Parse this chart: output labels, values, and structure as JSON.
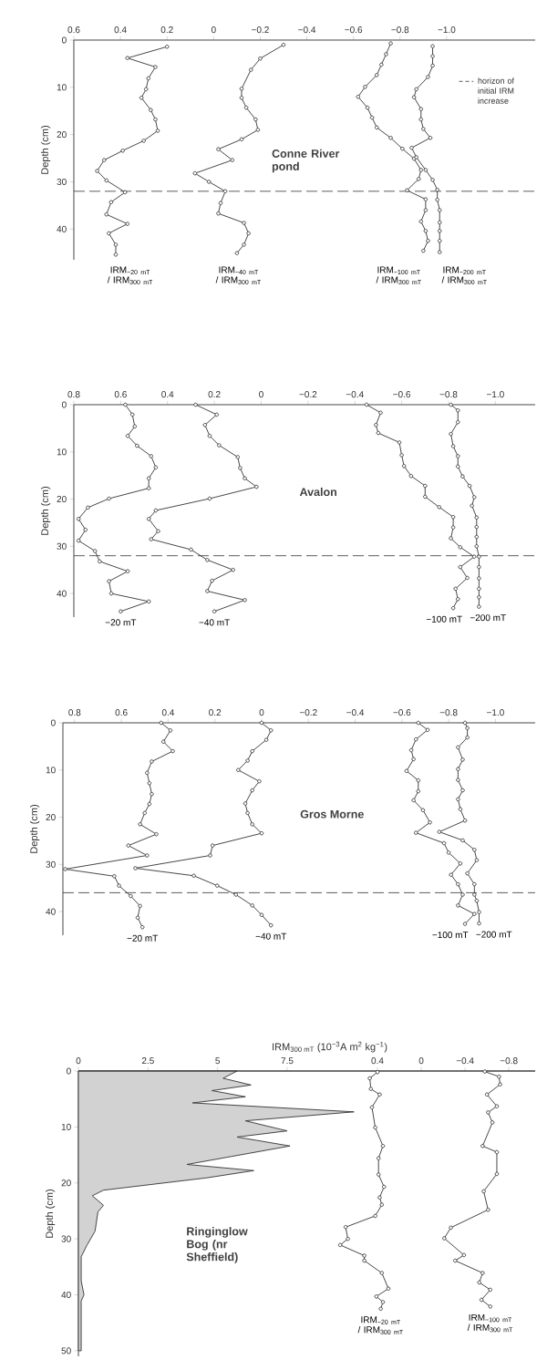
{
  "chart_data": [
    {
      "type": "line",
      "title": "Conne River pond",
      "ylabel": "Depth (cm)",
      "xlim": [
        0.6,
        -1.38
      ],
      "ylim": [
        46.5,
        0
      ],
      "xticks": [
        0.6,
        0.4,
        0.2,
        0,
        {
          "value": -0.2,
          "label": "−0.2"
        },
        {
          "value": -0.4,
          "label": "−0.4"
        },
        {
          "value": -0.6,
          "label": "−0.6"
        },
        {
          "value": -0.8,
          "label": "−0.8"
        },
        {
          "value": -1.0,
          "label": "−1.0"
        }
      ],
      "yticks": [
        0,
        10,
        20,
        30,
        40
      ],
      "ref_lines": [
        {
          "axis": "y",
          "value": 32,
          "label": "horizon of initial IRM increase",
          "line_style": "dashed"
        }
      ],
      "series": [
        {
          "name": "IRM$_{−20 mT}$ / IRM$_{300 mT}$",
          "color": "#333333",
          "marker": "circle",
          "x": [
            0.2,
            0.37,
            0.25,
            0.28,
            0.29,
            0.31,
            0.27,
            0.25,
            0.24,
            0.3,
            0.39,
            0.47,
            0.5,
            0.46,
            0.38,
            0.44,
            0.46,
            0.37,
            0.45,
            0.42,
            0.42
          ],
          "values": [
            1.4,
            3.8,
            5.7,
            8.1,
            10.4,
            12.2,
            14.8,
            16.8,
            19.2,
            21.3,
            23.4,
            25.4,
            27.7,
            29.7,
            32.2,
            34.3,
            36.9,
            38.9,
            40.9,
            43.3,
            45.4
          ]
        },
        {
          "name": "IRM$_{−40 mT}$ / IRM$_{300 mT}$",
          "color": "#333333",
          "marker": "circle",
          "x": [
            -0.3,
            -0.2,
            -0.16,
            -0.12,
            -0.12,
            -0.14,
            -0.18,
            -0.19,
            -0.12,
            -0.02,
            -0.08,
            0.08,
            0.02,
            -0.05,
            -0.03,
            -0.02,
            -0.13,
            -0.15,
            -0.13,
            -0.1
          ],
          "values": [
            1.0,
            3.9,
            6.3,
            10.3,
            12.2,
            14.3,
            16.8,
            19.0,
            21.0,
            23.1,
            25.4,
            28.2,
            30.0,
            32.0,
            34.5,
            36.7,
            38.7,
            40.9,
            43.3,
            45.1
          ]
        },
        {
          "name": "IRM$_{−100 mT}$ / IRM$_{300 mT}$",
          "color": "#333333",
          "marker": "circle",
          "x": [
            -0.76,
            -0.74,
            -0.72,
            -0.7,
            -0.65,
            -0.62,
            -0.66,
            -0.68,
            -0.7,
            -0.76,
            -0.81,
            -0.86,
            -0.89,
            -0.88,
            -0.83,
            -0.91,
            -0.91,
            -0.89,
            -0.91,
            -0.92,
            -0.9
          ],
          "values": [
            0.7,
            3.0,
            5.2,
            7.4,
            9.9,
            12.0,
            14.3,
            16.4,
            18.5,
            20.7,
            23.0,
            25.1,
            27.5,
            29.4,
            31.8,
            33.7,
            36.0,
            38.4,
            40.4,
            42.5,
            44.6
          ]
        },
        {
          "name": "IRM$_{−200 mT}$ / IRM$_{300 mT}$",
          "color": "#333333",
          "marker": "circle",
          "x": [
            -0.94,
            -0.94,
            -0.94,
            -0.92,
            -0.87,
            -0.86,
            -0.89,
            -0.89,
            -0.9,
            -0.93,
            -0.85,
            -0.87,
            -0.91,
            -0.94,
            -0.96,
            -0.96,
            -0.97,
            -0.97,
            -0.97,
            -0.97,
            -0.97
          ],
          "values": [
            1.3,
            3.4,
            5.4,
            7.8,
            10.4,
            12.1,
            14.6,
            16.8,
            18.8,
            20.7,
            22.8,
            24.8,
            27.5,
            29.6,
            31.7,
            33.8,
            36.0,
            38.6,
            40.4,
            42.5,
            44.9
          ]
        }
      ]
    },
    {
      "type": "line",
      "title": "Avalon",
      "ylabel": "Depth (cm)",
      "xlim": [
        0.8,
        -1.17
      ],
      "ylim": [
        45,
        0
      ],
      "xticks": [
        0.8,
        0.6,
        0.4,
        0.2,
        0,
        {
          "value": -0.2,
          "label": "−0.2"
        },
        {
          "value": -0.4,
          "label": "−0.4"
        },
        {
          "value": -0.6,
          "label": "−0.6"
        },
        {
          "value": -0.8,
          "label": "−0.8"
        },
        {
          "value": -1.0,
          "label": "−1.0"
        }
      ],
      "yticks": [
        0,
        10,
        20,
        30,
        40
      ],
      "ref_lines": [
        {
          "axis": "y",
          "value": 32,
          "line_style": "dashed"
        }
      ],
      "series": [
        {
          "name": "−20 mT",
          "color": "#333333",
          "marker": "circle",
          "x": [
            0.58,
            0.55,
            0.54,
            0.57,
            0.53,
            0.47,
            0.45,
            0.48,
            0.48,
            0.65,
            0.74,
            0.78,
            0.75,
            0.78,
            0.71,
            0.69,
            0.57,
            0.65,
            0.64,
            0.48,
            0.6
          ],
          "values": [
            0,
            2.1,
            4.6,
            6.6,
            8.7,
            10.9,
            13.3,
            15.6,
            17.7,
            19.9,
            21.8,
            24.2,
            26.5,
            28.8,
            31.0,
            33.2,
            35.3,
            37.4,
            40.0,
            41.7,
            43.8
          ]
        },
        {
          "name": "−40 mT",
          "color": "#333333",
          "marker": "circle",
          "x": [
            0.28,
            0.19,
            0.24,
            0.22,
            0.18,
            0.1,
            0.09,
            0.07,
            0.02,
            0.22,
            0.45,
            0.48,
            0.44,
            0.47,
            0.3,
            0.23,
            0.12,
            0.21,
            0.23,
            0.07,
            0.2
          ],
          "values": [
            0,
            2.1,
            4.3,
            6.6,
            8.6,
            11.1,
            13.4,
            15.6,
            17.4,
            19.9,
            22.4,
            24.2,
            26.8,
            28.5,
            30.7,
            32.9,
            35.0,
            37.3,
            39.5,
            41.4,
            43.8
          ]
        },
        {
          "name": "−100 mT",
          "color": "#333333",
          "marker": "circle",
          "x": [
            -0.45,
            -0.51,
            -0.49,
            -0.5,
            -0.59,
            -0.6,
            -0.61,
            -0.64,
            -0.7,
            -0.7,
            -0.76,
            -0.82,
            -0.82,
            -0.81,
            -0.85,
            -0.91,
            -0.85,
            -0.88,
            -0.83,
            -0.84,
            -0.82
          ],
          "values": [
            0,
            1.7,
            4.3,
            6.0,
            8.0,
            10.7,
            13.0,
            15.1,
            17.2,
            19.5,
            21.7,
            23.8,
            26.0,
            28.3,
            30.2,
            32.2,
            34.4,
            36.7,
            39.0,
            41.2,
            43.1
          ]
        },
        {
          "name": "−200 mT",
          "color": "#333333",
          "marker": "circle",
          "x": [
            -0.81,
            -0.84,
            -0.84,
            -0.81,
            -0.82,
            -0.84,
            -0.84,
            -0.86,
            -0.89,
            -0.91,
            -0.9,
            -0.92,
            -0.92,
            -0.92,
            -0.92,
            -0.93,
            -0.93,
            -0.93,
            -0.93,
            -0.93,
            -0.93
          ],
          "values": [
            0,
            1.2,
            3.7,
            6.2,
            8.8,
            10.9,
            13.1,
            15.2,
            17.2,
            19.6,
            21.4,
            23.9,
            25.9,
            28.0,
            30.0,
            32.2,
            34.4,
            36.8,
            39.0,
            40.8,
            42.8
          ]
        }
      ]
    },
    {
      "type": "line",
      "title": "Gros Morne",
      "ylabel": "Depth (cm)",
      "xlim": [
        0.85,
        -1.17
      ],
      "ylim": [
        45,
        0
      ],
      "xticks": [
        0.8,
        0.6,
        0.4,
        0.2,
        0,
        {
          "value": -0.2,
          "label": "−0.2"
        },
        {
          "value": -0.4,
          "label": "−0.4"
        },
        {
          "value": -0.6,
          "label": "−0.6"
        },
        {
          "value": -0.8,
          "label": "−0.8"
        },
        {
          "value": -1.0,
          "label": "−1.0"
        }
      ],
      "yticks": [
        0,
        10,
        20,
        30,
        40
      ],
      "ref_lines": [
        {
          "axis": "y",
          "value": 36,
          "line_style": "dashed"
        }
      ],
      "series": [
        {
          "name": "−20 mT",
          "color": "#333333",
          "marker": "circle",
          "x": [
            0.43,
            0.39,
            0.42,
            0.38,
            0.47,
            0.49,
            0.48,
            0.47,
            0.48,
            0.5,
            0.52,
            0.45,
            0.57,
            0.49,
            0.84,
            0.63,
            0.61,
            0.56,
            0.52,
            0.53,
            0.51
          ],
          "values": [
            0,
            1.6,
            4.0,
            6.0,
            8.2,
            10.6,
            12.8,
            15.1,
            17.2,
            19.1,
            21.5,
            23.6,
            26.0,
            28.1,
            31.0,
            32.5,
            34.5,
            36.7,
            38.8,
            41.3,
            43.3
          ]
        },
        {
          "name": "−40 mT",
          "color": "#333333",
          "marker": "circle",
          "x": [
            0,
            -0.04,
            -0.02,
            0.04,
            0.06,
            0.1,
            0.01,
            0.04,
            0.07,
            0.06,
            0.04,
            0,
            0.21,
            0.22,
            0.54,
            0.29,
            0.19,
            0.11,
            0.04,
            0,
            -0.04
          ],
          "values": [
            0,
            1.6,
            3.6,
            6.0,
            8.0,
            10.0,
            12.4,
            14.3,
            17.1,
            19.1,
            21.5,
            23.4,
            26.0,
            28.1,
            30.8,
            32.4,
            34.5,
            36.4,
            38.7,
            40.7,
            42.9
          ]
        },
        {
          "name": "−100 mT",
          "color": "#333333",
          "marker": "circle",
          "x": [
            -0.67,
            -0.71,
            -0.66,
            -0.64,
            -0.65,
            -0.62,
            -0.67,
            -0.67,
            -0.65,
            -0.69,
            -0.72,
            -0.66,
            -0.78,
            -0.8,
            -0.85,
            -0.81,
            -0.84,
            -0.86,
            -0.84,
            -0.91,
            -0.87
          ],
          "values": [
            0,
            1.5,
            3.5,
            5.8,
            7.7,
            10.2,
            12.2,
            14.5,
            16.4,
            18.5,
            21.1,
            23.3,
            25.5,
            27.5,
            29.8,
            32.2,
            34.2,
            36.4,
            38.7,
            40.5,
            42.6
          ]
        },
        {
          "name": "−200 mT",
          "color": "#333333",
          "marker": "circle",
          "x": [
            -0.87,
            -0.88,
            -0.88,
            -0.84,
            -0.86,
            -0.84,
            -0.84,
            -0.86,
            -0.84,
            -0.85,
            -0.87,
            -0.76,
            -0.86,
            -0.91,
            -0.92,
            -0.88,
            -0.91,
            -0.91,
            -0.92,
            -0.93,
            -0.93
          ],
          "values": [
            0,
            1.1,
            3.1,
            5.2,
            7.8,
            9.8,
            12.1,
            14.3,
            16.2,
            18.3,
            20.7,
            23.1,
            24.9,
            26.9,
            29.1,
            31.9,
            34.2,
            36.4,
            37.7,
            40.1,
            42.5
          ]
        }
      ]
    },
    {
      "type": "line",
      "title": "Ringinglow Bog (nr Sheffield)",
      "xlabel": "IRM$_{300 mT}$ (10$^{−3}$A m$^{2}$ kg$^{−1}$)",
      "ylabel": "Depth (cm)",
      "xlim": [
        0,
        16.41
      ],
      "x2lim": [
        3.13,
        -1.04
      ],
      "ylim": [
        51,
        0
      ],
      "xticks": [
        0,
        2.5,
        5,
        7.5
      ],
      "x2ticks": [
        0.4,
        0,
        {
          "value": -0.4,
          "label": "−0.4"
        },
        {
          "value": -0.8,
          "label": "−0.8"
        }
      ],
      "yticks": [
        0,
        10,
        20,
        30,
        40,
        50
      ],
      "series": [
        {
          "type": "area",
          "color": "#333333",
          "marker": "none",
          "x": [
            0,
            5.7,
            5.2,
            6.2,
            4.8,
            6.0,
            4.1,
            9.9,
            6.0,
            7.5,
            5.7,
            7.6,
            3.9,
            6.3,
            4.6,
            0.9,
            0.5,
            0.9,
            0.7,
            0.6,
            0.3,
            0.1,
            0.1,
            0.2,
            0.1,
            0.1,
            0
          ],
          "values": [
            0,
            0,
            1.3,
            2.5,
            3.5,
            4.6,
            5.7,
            7.3,
            8.9,
            10.7,
            11.8,
            13.4,
            16.7,
            17.8,
            19.1,
            21.3,
            22.3,
            24.0,
            25.2,
            28.6,
            31.2,
            33.2,
            37.5,
            40.0,
            41.1,
            50,
            50
          ]
        },
        {
          "name": "IRM$_{−20 mT}$ / IRM$_{300 mT}$",
          "axis": "x2",
          "color": "#333333",
          "marker": "circle",
          "x": [
            0.4,
            0.47,
            0.46,
            0.38,
            0.45,
            0.42,
            0.35,
            0.39,
            0.39,
            0.34,
            0.38,
            0.36,
            0.42,
            0.69,
            0.67,
            0.74,
            0.52,
            0.52,
            0.36,
            0.3,
            0.41,
            0.35,
            0.37
          ],
          "values": [
            0.2,
            1.3,
            3.2,
            4.2,
            6.5,
            10.1,
            13.4,
            15.6,
            18.5,
            20.7,
            22.6,
            23.9,
            25.9,
            27.9,
            30.0,
            31.1,
            33.0,
            33.9,
            36.1,
            38.9,
            40.3,
            41.3,
            42.5
          ]
        },
        {
          "name": "IRM$_{−100 mT}$ / IRM$_{300 mT}$",
          "axis": "x2",
          "color": "#333333",
          "marker": "circle",
          "x": [
            -0.58,
            -0.71,
            -0.72,
            -0.6,
            -0.69,
            -0.61,
            -0.65,
            -0.56,
            -0.69,
            -0.69,
            -0.57,
            -0.61,
            -0.27,
            -0.21,
            -0.39,
            -0.31,
            -0.56,
            -0.53,
            -0.63,
            -0.55,
            -0.63
          ],
          "values": [
            0.1,
            1.0,
            2.4,
            4.2,
            6.3,
            7.4,
            9.2,
            13.4,
            14.5,
            18.4,
            21.5,
            24.8,
            28.0,
            29.9,
            32.9,
            33.9,
            36.1,
            37.8,
            39.1,
            40.9,
            42.1
          ]
        }
      ]
    }
  ]
}
